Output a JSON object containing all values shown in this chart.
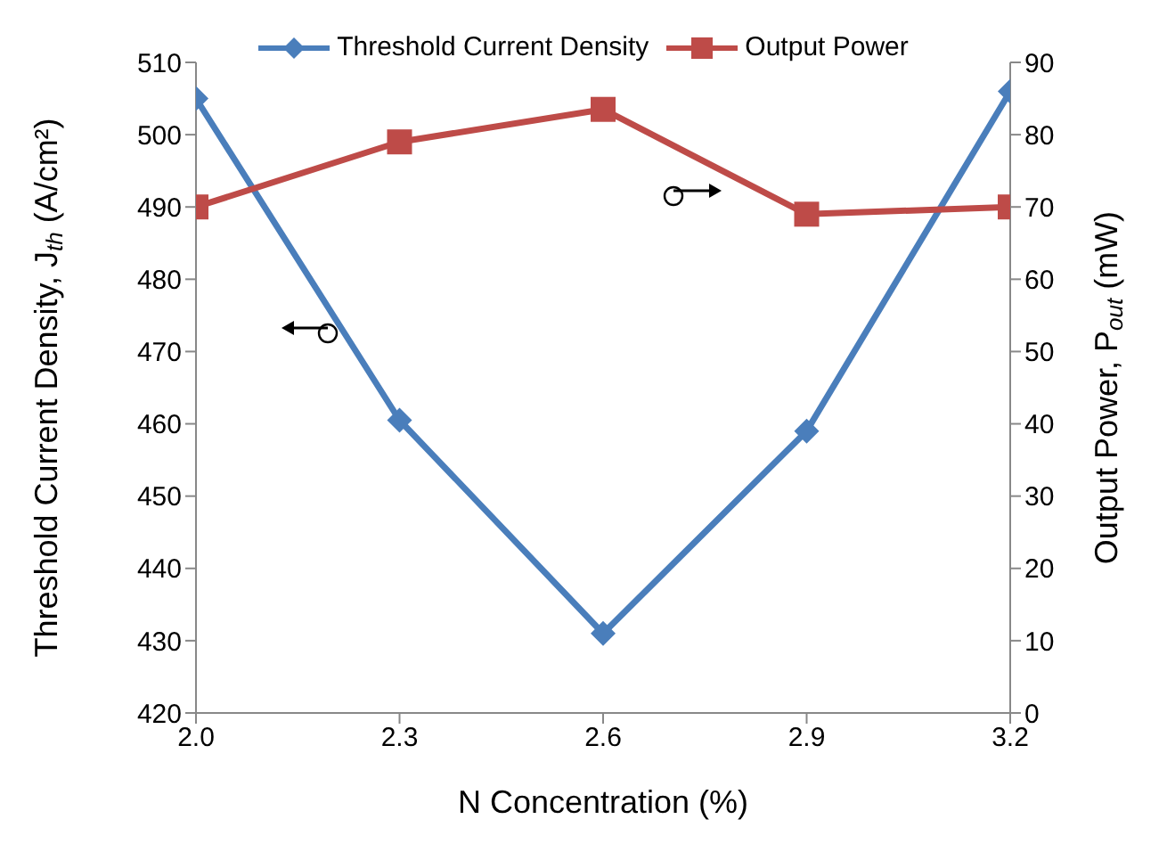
{
  "chart_data": {
    "type": "line",
    "xlabel": "N Concentration (%)",
    "ylabel": "Threshold Current Density, J$_{th}$ (A/cm²)",
    "y2label": "Output Power, P$_{out}$ (mW)",
    "x": [
      2.0,
      2.3,
      2.6,
      2.9,
      3.2
    ],
    "xlim": [
      2.0,
      3.2
    ],
    "xticks": [
      {
        "value": 2.0,
        "label": "2.0"
      },
      {
        "value": 2.3,
        "label": "2.3"
      },
      {
        "value": 2.6,
        "label": "2.6"
      },
      {
        "value": 2.9,
        "label": "2.9"
      },
      {
        "value": 3.2,
        "label": "3.2"
      }
    ],
    "ylim": [
      420,
      510
    ],
    "yticks": [
      420,
      430,
      440,
      450,
      460,
      470,
      480,
      490,
      500,
      510
    ],
    "y2lim": [
      0,
      90
    ],
    "y2ticks": [
      0,
      10,
      20,
      30,
      40,
      50,
      60,
      70,
      80,
      90
    ],
    "series": [
      {
        "name": "Threshold Current Density",
        "color": "#4a7ebb",
        "values": [
          505,
          460.5,
          431,
          459,
          506
        ],
        "marker": "diamond"
      },
      {
        "name": "Output Power",
        "color": "#be4b48",
        "values": [
          70,
          79,
          83.5,
          69,
          70
        ],
        "axis": "y2",
        "marker": "square"
      }
    ],
    "legend": "top",
    "grid": false,
    "line_style": "solid"
  }
}
